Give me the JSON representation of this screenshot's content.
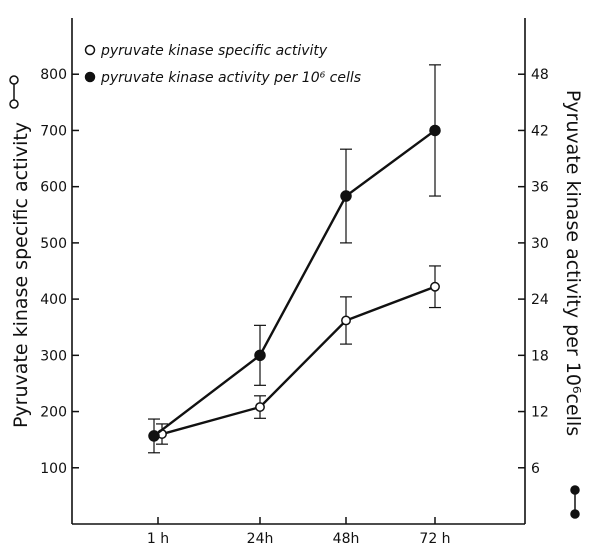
{
  "chart_data": {
    "type": "line",
    "categories": [
      "1 h",
      "24h",
      "48h",
      "72 h"
    ],
    "left_axis": {
      "label": "Pyruvate kinase specific activity",
      "ticks": [
        100,
        200,
        300,
        400,
        500,
        600,
        700,
        800
      ],
      "ylim": [
        0,
        900
      ]
    },
    "right_axis": {
      "label": "Pyruvate kinase activity per 10⁶cells",
      "ticks": [
        6,
        12,
        18,
        24,
        30,
        36,
        42,
        48
      ],
      "ylim": [
        0,
        54
      ]
    },
    "series": [
      {
        "name": "pyruvate kinase specific activity",
        "marker": "open",
        "axis": "left",
        "values": [
          160,
          208,
          362,
          422
        ],
        "err": [
          18,
          20,
          42,
          37
        ]
      },
      {
        "name": "pyruvate kinase activity per 10⁶ cells",
        "marker": "filled",
        "axis": "right",
        "values": [
          9.4,
          18,
          35,
          42
        ],
        "err": [
          1.8,
          3.2,
          5,
          7
        ]
      }
    ],
    "grid": false,
    "legend_position": "top-left",
    "colors": {
      "line": "#111111",
      "open_fill": "#ffffff",
      "filled_fill": "#111111"
    }
  }
}
